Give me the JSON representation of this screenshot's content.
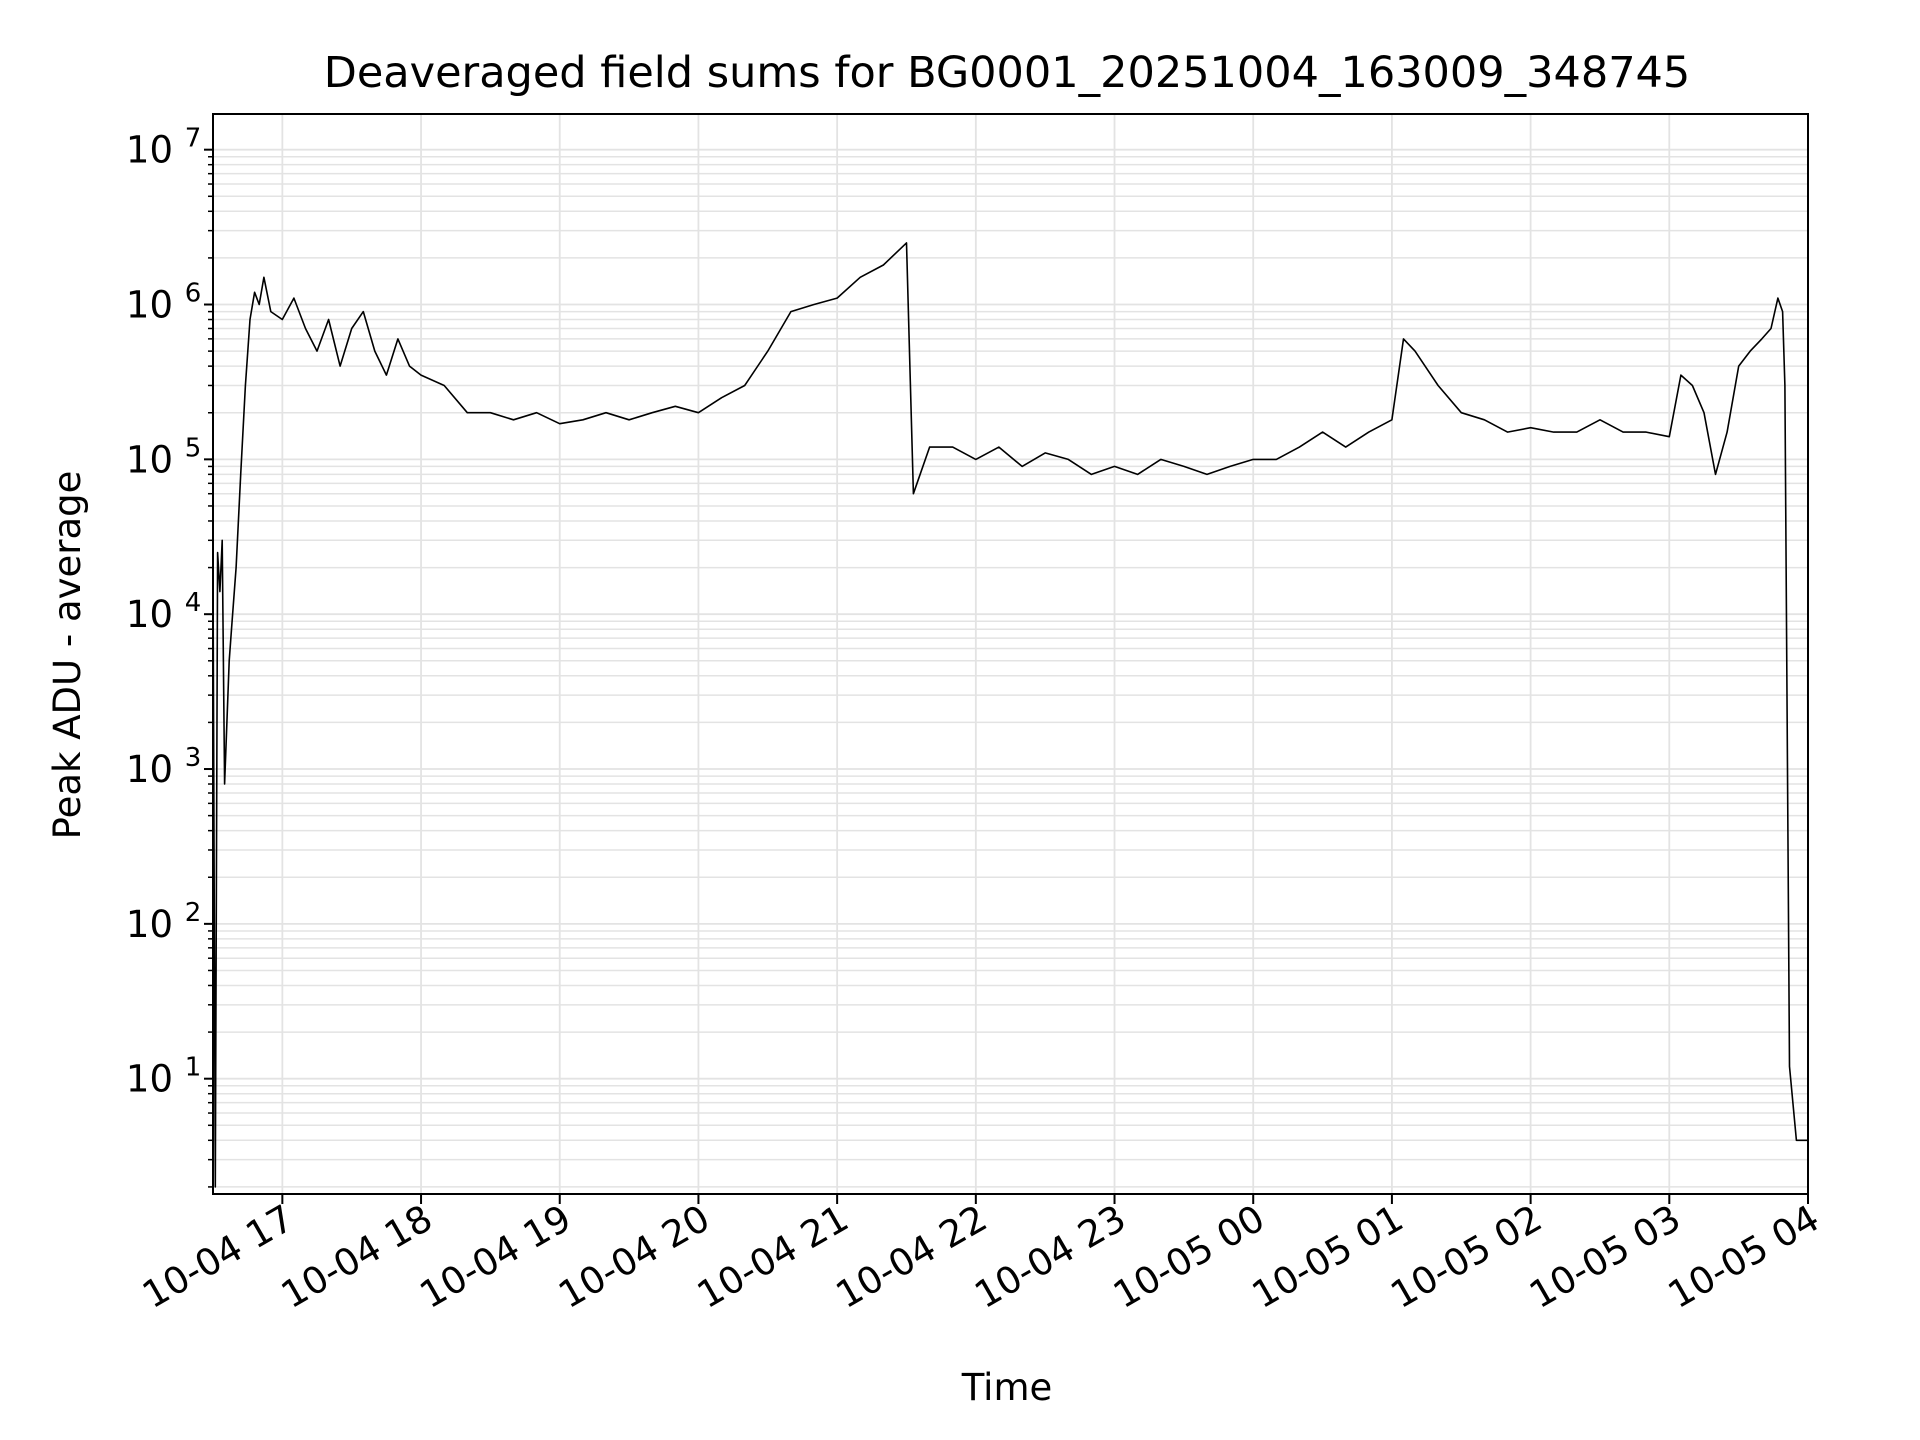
{
  "chart_data": {
    "type": "line",
    "title": "Deaveraged field sums for BG0001_20251004_163009_348745",
    "xlabel": "Time",
    "ylabel": "Peak ADU - average",
    "yscale": "log",
    "ylim": [
      1.8,
      17000000
    ],
    "xlim": [
      "2025-10-04 16:30",
      "2025-10-05 04:00"
    ],
    "grid": true,
    "line_color": "#000000",
    "grid_color": "#e3e3e3",
    "x_ticks": [
      {
        "at": "2025-10-04 17:00",
        "label": "10-04 17"
      },
      {
        "at": "2025-10-04 18:00",
        "label": "10-04 18"
      },
      {
        "at": "2025-10-04 19:00",
        "label": "10-04 19"
      },
      {
        "at": "2025-10-04 20:00",
        "label": "10-04 20"
      },
      {
        "at": "2025-10-04 21:00",
        "label": "10-04 21"
      },
      {
        "at": "2025-10-04 22:00",
        "label": "10-04 22"
      },
      {
        "at": "2025-10-04 23:00",
        "label": "10-04 23"
      },
      {
        "at": "2025-10-05 00:00",
        "label": "10-05 00"
      },
      {
        "at": "2025-10-05 01:00",
        "label": "10-05 01"
      },
      {
        "at": "2025-10-05 02:00",
        "label": "10-05 02"
      },
      {
        "at": "2025-10-05 03:00",
        "label": "10-05 03"
      },
      {
        "at": "2025-10-05 04:00",
        "label": "10-05 04"
      }
    ],
    "y_ticks": [
      {
        "value": 10,
        "base": "10",
        "exp": "1"
      },
      {
        "value": 100,
        "base": "10",
        "exp": "2"
      },
      {
        "value": 1000,
        "base": "10",
        "exp": "3"
      },
      {
        "value": 10000,
        "base": "10",
        "exp": "4"
      },
      {
        "value": 100000,
        "base": "10",
        "exp": "5"
      },
      {
        "value": 1000000,
        "base": "10",
        "exp": "6"
      },
      {
        "value": 10000000,
        "base": "10",
        "exp": "7"
      }
    ],
    "series": [
      {
        "x": [
          "2025-10-04 16:30",
          "2025-10-04 16:31",
          "2025-10-04 16:32",
          "2025-10-04 16:33",
          "2025-10-04 16:34",
          "2025-10-04 16:35",
          "2025-10-04 16:36",
          "2025-10-04 16:37",
          "2025-10-04 16:38",
          "2025-10-04 16:40",
          "2025-10-04 16:42",
          "2025-10-04 16:44",
          "2025-10-04 16:46",
          "2025-10-04 16:48",
          "2025-10-04 16:50",
          "2025-10-04 16:52",
          "2025-10-04 16:55",
          "2025-10-04 17:00",
          "2025-10-04 17:05",
          "2025-10-04 17:10",
          "2025-10-04 17:15",
          "2025-10-04 17:20",
          "2025-10-04 17:25",
          "2025-10-04 17:30",
          "2025-10-04 17:35",
          "2025-10-04 17:40",
          "2025-10-04 17:45",
          "2025-10-04 17:50",
          "2025-10-04 17:55",
          "2025-10-04 18:00",
          "2025-10-04 18:10",
          "2025-10-04 18:20",
          "2025-10-04 18:30",
          "2025-10-04 18:40",
          "2025-10-04 18:50",
          "2025-10-04 19:00",
          "2025-10-04 19:10",
          "2025-10-04 19:20",
          "2025-10-04 19:30",
          "2025-10-04 19:40",
          "2025-10-04 19:50",
          "2025-10-04 20:00",
          "2025-10-04 20:10",
          "2025-10-04 20:20",
          "2025-10-04 20:30",
          "2025-10-04 20:40",
          "2025-10-04 20:50",
          "2025-10-04 21:00",
          "2025-10-04 21:10",
          "2025-10-04 21:20",
          "2025-10-04 21:30",
          "2025-10-04 21:33",
          "2025-10-04 21:40",
          "2025-10-04 21:50",
          "2025-10-04 22:00",
          "2025-10-04 22:10",
          "2025-10-04 22:20",
          "2025-10-04 22:30",
          "2025-10-04 22:40",
          "2025-10-04 22:50",
          "2025-10-04 23:00",
          "2025-10-04 23:10",
          "2025-10-04 23:20",
          "2025-10-04 23:30",
          "2025-10-04 23:40",
          "2025-10-04 23:50",
          "2025-10-05 00:00",
          "2025-10-05 00:10",
          "2025-10-05 00:20",
          "2025-10-05 00:30",
          "2025-10-05 00:40",
          "2025-10-05 00:50",
          "2025-10-05 01:00",
          "2025-10-05 01:05",
          "2025-10-05 01:10",
          "2025-10-05 01:20",
          "2025-10-05 01:30",
          "2025-10-05 01:40",
          "2025-10-05 01:50",
          "2025-10-05 02:00",
          "2025-10-05 02:10",
          "2025-10-05 02:20",
          "2025-10-05 02:30",
          "2025-10-05 02:40",
          "2025-10-05 02:50",
          "2025-10-05 03:00",
          "2025-10-05 03:05",
          "2025-10-05 03:10",
          "2025-10-05 03:15",
          "2025-10-05 03:20",
          "2025-10-05 03:25",
          "2025-10-05 03:30",
          "2025-10-05 03:35",
          "2025-10-05 03:40",
          "2025-10-05 03:44",
          "2025-10-05 03:47",
          "2025-10-05 03:49",
          "2025-10-05 03:50",
          "2025-10-05 03:52",
          "2025-10-05 03:55",
          "2025-10-05 04:00"
        ],
        "y": [
          20000,
          2,
          25000,
          14000,
          30000,
          800,
          2000,
          5000,
          8000,
          20000,
          80000,
          300000,
          800000,
          1200000,
          1000000,
          1500000,
          900000,
          800000,
          1100000,
          700000,
          500000,
          800000,
          400000,
          700000,
          900000,
          500000,
          350000,
          600000,
          400000,
          350000,
          300000,
          200000,
          200000,
          180000,
          200000,
          170000,
          180000,
          200000,
          180000,
          200000,
          220000,
          200000,
          250000,
          300000,
          500000,
          900000,
          1000000,
          1100000,
          1500000,
          1800000,
          2500000,
          60000,
          120000,
          120000,
          100000,
          120000,
          90000,
          110000,
          100000,
          80000,
          90000,
          80000,
          100000,
          90000,
          80000,
          90000,
          100000,
          100000,
          120000,
          150000,
          120000,
          150000,
          180000,
          600000,
          500000,
          300000,
          200000,
          180000,
          150000,
          160000,
          150000,
          150000,
          180000,
          150000,
          150000,
          140000,
          350000,
          300000,
          200000,
          80000,
          150000,
          400000,
          500000,
          600000,
          700000,
          1100000,
          900000,
          300000,
          12,
          4,
          4
        ]
      }
    ]
  }
}
